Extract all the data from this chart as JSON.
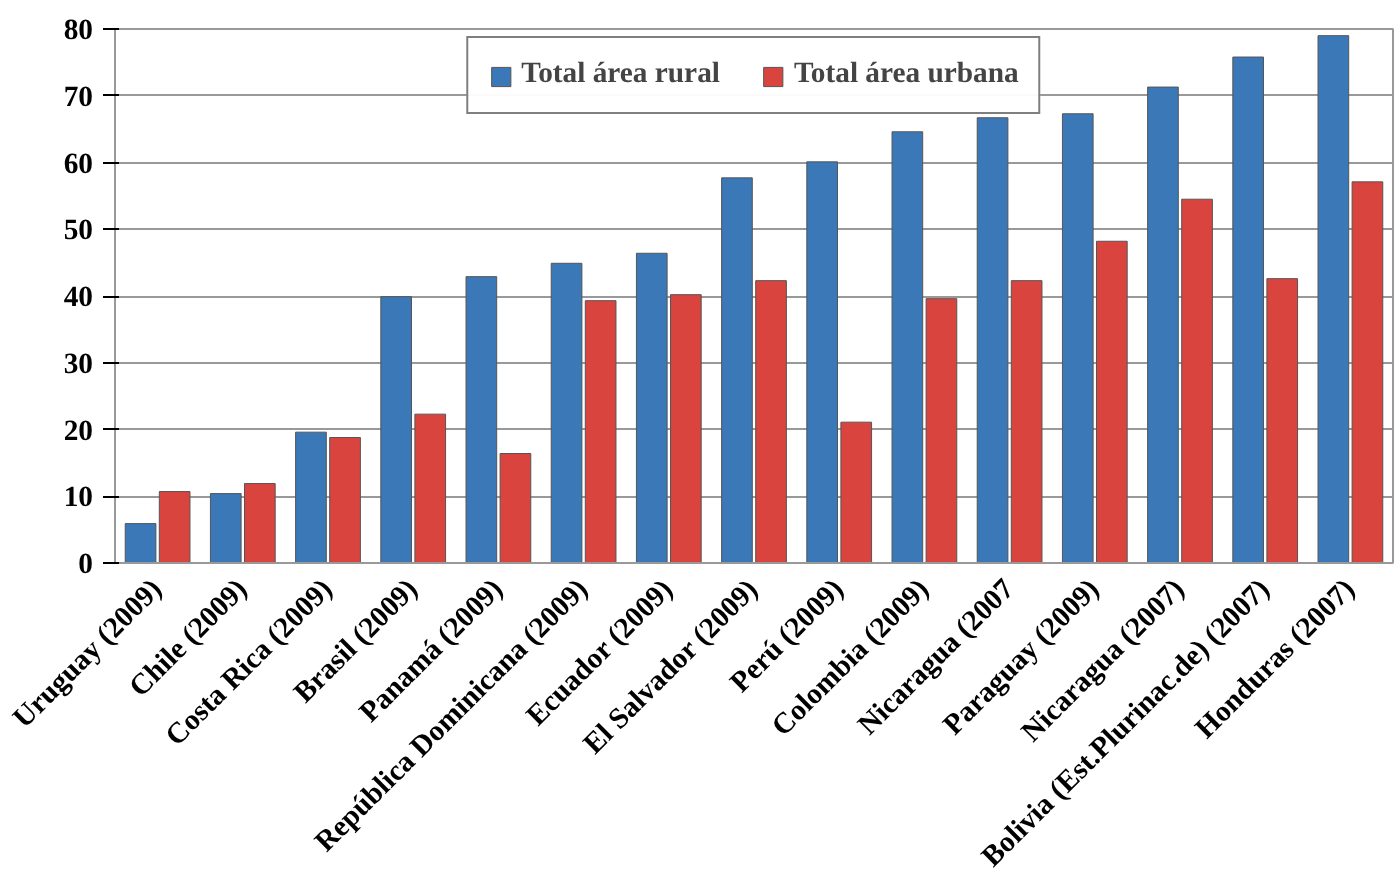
{
  "chart_data": {
    "type": "bar",
    "categories": [
      "Uruguay (2009)",
      "Chile (2009)",
      "Costa Rica (2009)",
      "Brasil (2009)",
      "Panamá (2009)",
      "República Dominicana (2009)",
      "Ecuador (2009)",
      "El Salvador (2009)",
      "Perú (2009)",
      "Colombia (2009)",
      "Nicaragua (2007",
      "Paraguay (2009)",
      "Nicaragua (2007)",
      "Bolivia (Est.Plurinac.de) (2007)",
      "Honduras (2007)"
    ],
    "series": [
      {
        "name": "Total área rural",
        "color": "#3a78b8",
        "values": [
          5.9,
          10.4,
          19.6,
          39.9,
          42.9,
          44.9,
          46.4,
          57.7,
          60.1,
          64.6,
          66.7,
          67.3,
          71.3,
          75.8,
          79.0
        ]
      },
      {
        "name": "Total área urbana",
        "color": "#d9443f",
        "values": [
          10.7,
          11.9,
          18.8,
          22.3,
          16.4,
          39.3,
          40.2,
          42.3,
          21.1,
          39.6,
          42.3,
          48.2,
          54.5,
          42.6,
          57.1
        ]
      }
    ],
    "ylim": [
      0,
      80
    ],
    "yticks": [
      0,
      10,
      20,
      30,
      40,
      50,
      60,
      70,
      80
    ],
    "grid": "y",
    "legend": "top"
  }
}
